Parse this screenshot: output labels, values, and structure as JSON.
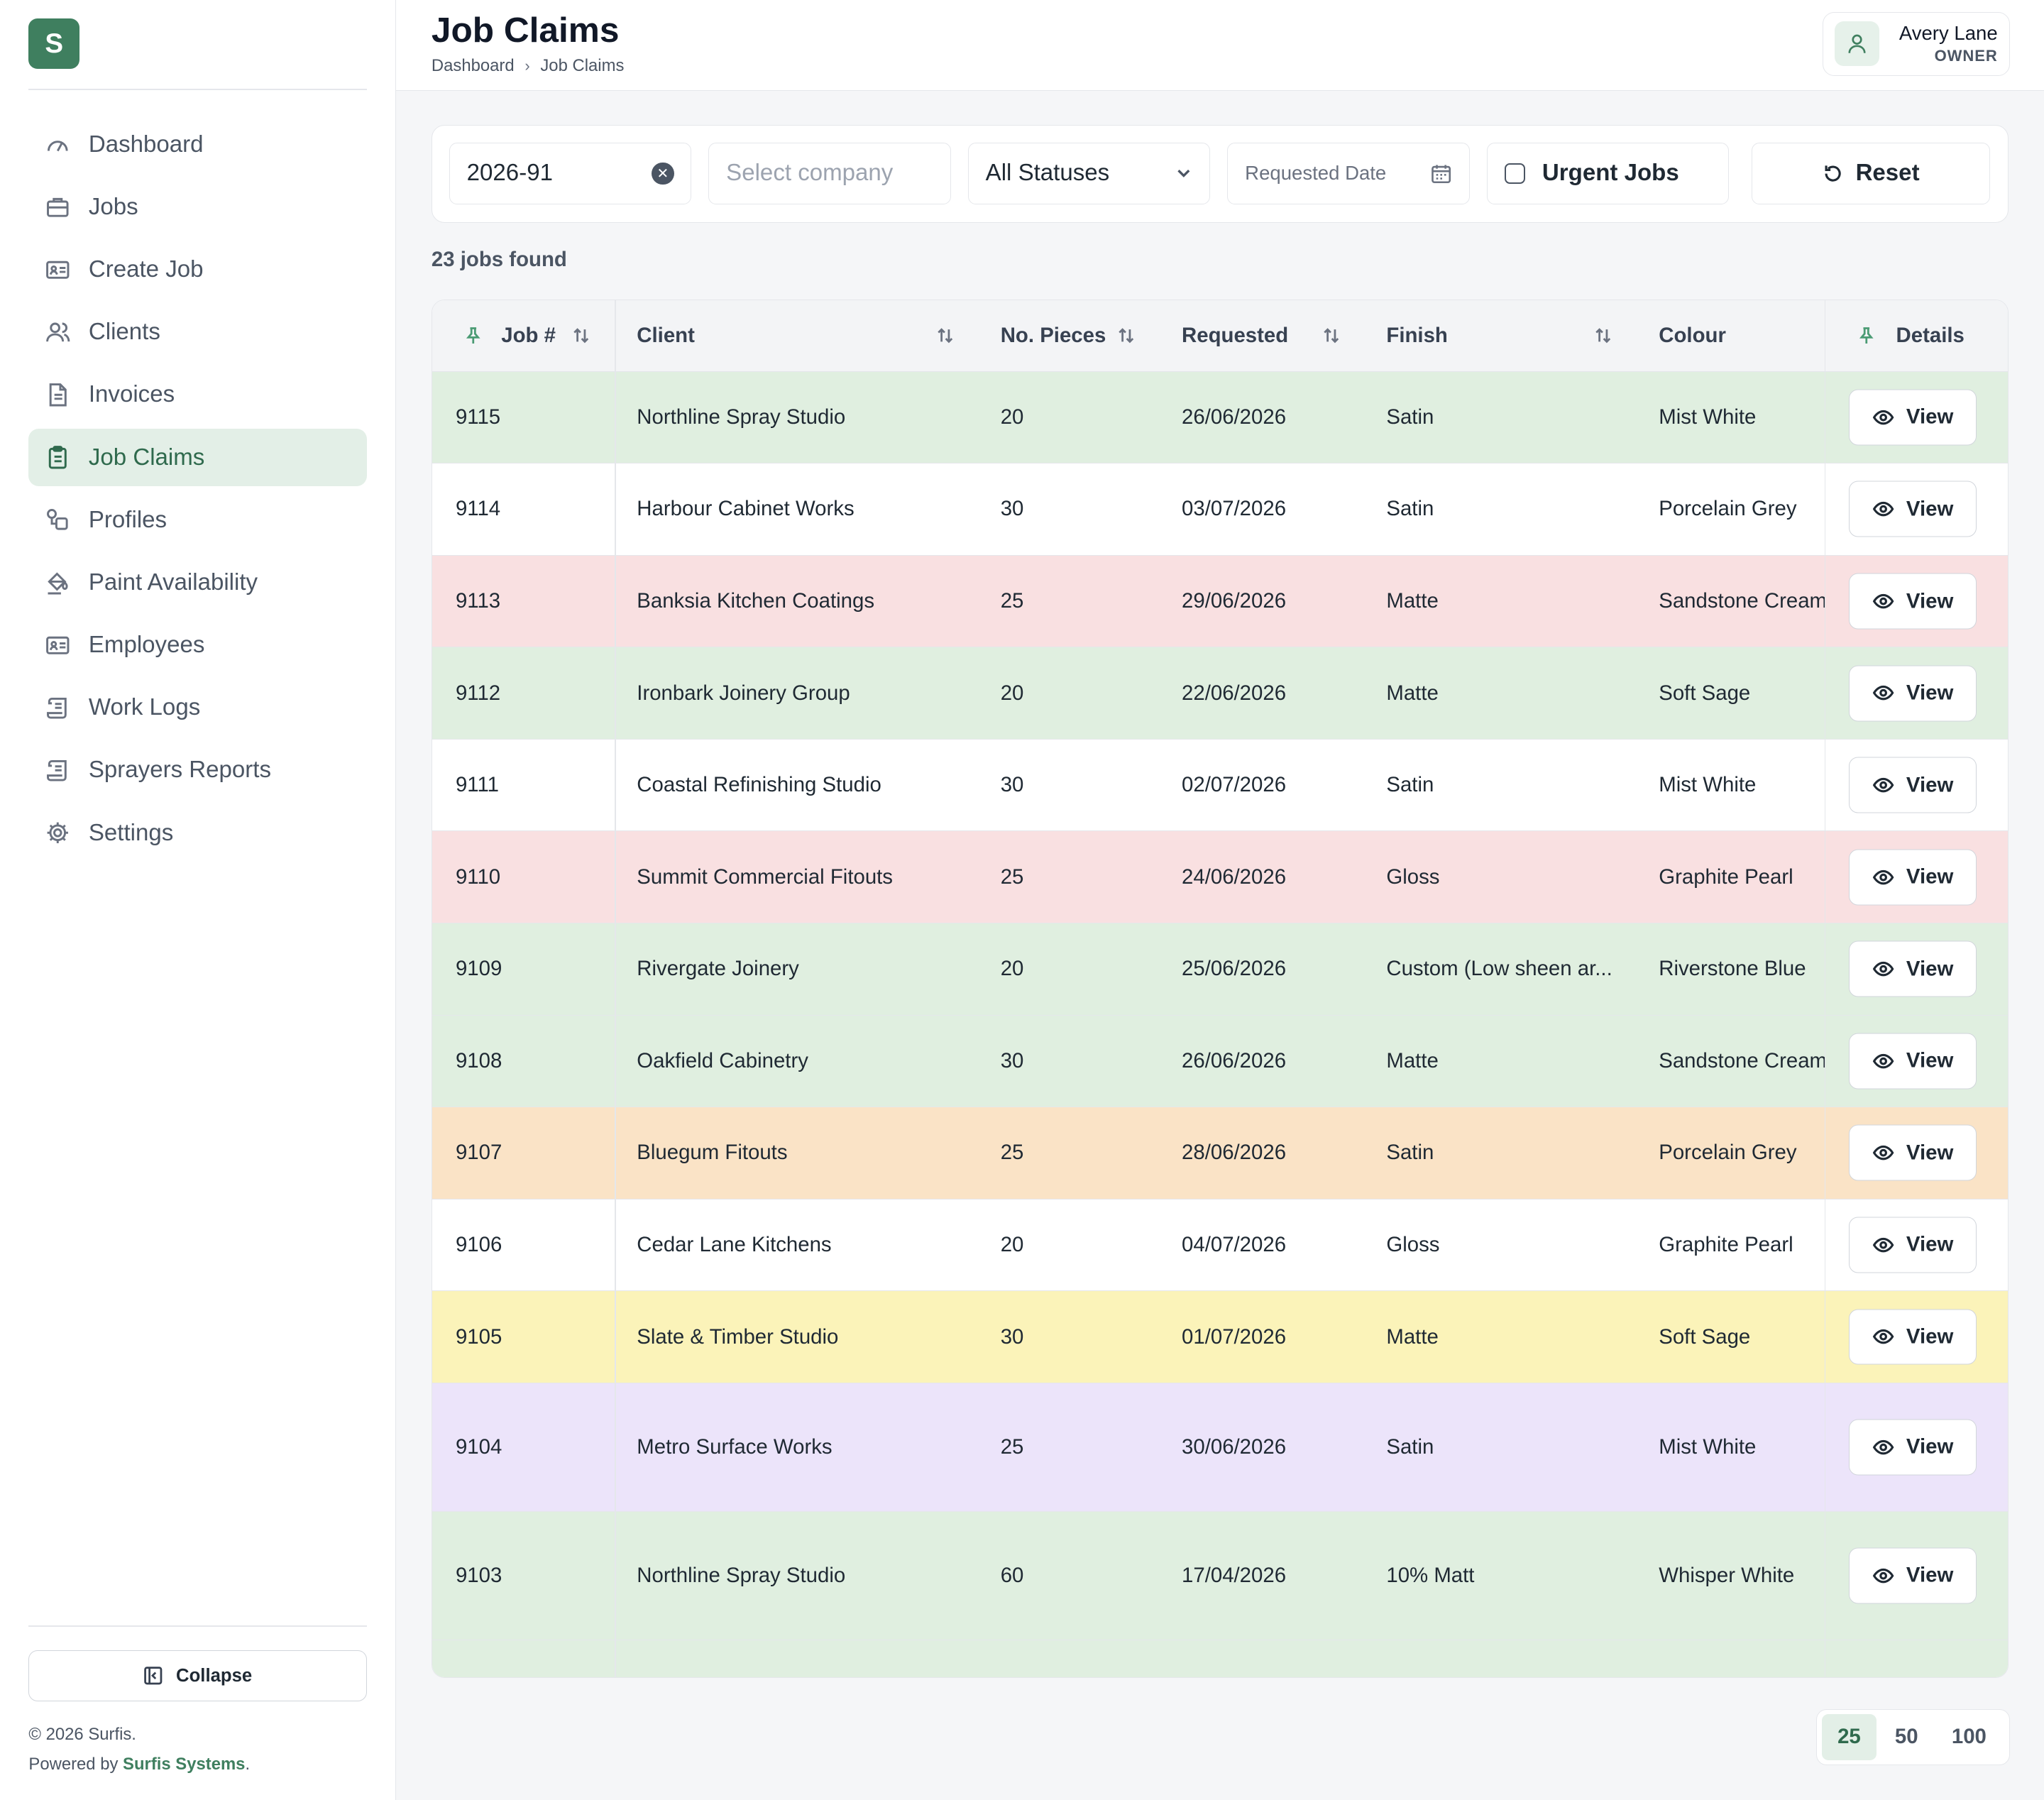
{
  "sidebar": {
    "logo": "S",
    "items": [
      {
        "label": "Dashboard",
        "icon": "gauge-icon",
        "active": false
      },
      {
        "label": "Jobs",
        "icon": "briefcase-icon",
        "active": false
      },
      {
        "label": "Create Job",
        "icon": "id-card-icon",
        "active": false
      },
      {
        "label": "Clients",
        "icon": "users-icon",
        "active": false
      },
      {
        "label": "Invoices",
        "icon": "document-icon",
        "active": false
      },
      {
        "label": "Job Claims",
        "icon": "clipboard-icon",
        "active": true
      },
      {
        "label": "Profiles",
        "icon": "profiles-icon",
        "active": false
      },
      {
        "label": "Paint Availability",
        "icon": "paint-bucket-icon",
        "active": false
      },
      {
        "label": "Employees",
        "icon": "id-card-icon",
        "active": false
      },
      {
        "label": "Work Logs",
        "icon": "scroll-icon",
        "active": false
      },
      {
        "label": "Sprayers Reports",
        "icon": "scroll-icon",
        "active": false
      },
      {
        "label": "Settings",
        "icon": "gear-icon",
        "active": false
      }
    ],
    "collapse_label": "Collapse",
    "copyright": "© 2026 Surfis.",
    "powered_prefix": "Powered by",
    "powered_brand": "Surfis Systems",
    "powered_suffix": "."
  },
  "header": {
    "title": "Job Claims",
    "breadcrumb": [
      "Dashboard",
      "Job Claims"
    ]
  },
  "user": {
    "name": "Avery Lane",
    "role": "OWNER"
  },
  "filters": {
    "job_search_value": "2026-91",
    "company_placeholder": "Select company",
    "status_value": "All Statuses",
    "date_placeholder": "Requested Date",
    "urgent_label": "Urgent Jobs",
    "reset_label": "Reset"
  },
  "results": {
    "count_text": "23 jobs found"
  },
  "table": {
    "columns": {
      "job": "Job #",
      "client": "Client",
      "pieces": "No. Pieces",
      "requested": "Requested",
      "finish": "Finish",
      "colour": "Colour",
      "details": "Details"
    },
    "view_label": "View",
    "row_colors": {
      "green": "#e0efe0",
      "white": "#ffffff",
      "red": "#f9e0e1",
      "orange": "#fae3c6",
      "yellow": "#fbf3b9",
      "purple": "#ece4fa"
    },
    "rows": [
      {
        "job": "9115",
        "client": "Northline Spray Studio",
        "pieces": "20",
        "requested": "26/06/2026",
        "finish": "Satin",
        "colour": "Mist White",
        "color": "green"
      },
      {
        "job": "9114",
        "client": "Harbour Cabinet Works",
        "pieces": "30",
        "requested": "03/07/2026",
        "finish": "Satin",
        "colour": "Porcelain Grey",
        "color": "white"
      },
      {
        "job": "9113",
        "client": "Banksia Kitchen Coatings",
        "pieces": "25",
        "requested": "29/06/2026",
        "finish": "Matte",
        "colour": "Sandstone Cream",
        "color": "red"
      },
      {
        "job": "9112",
        "client": "Ironbark Joinery Group",
        "pieces": "20",
        "requested": "22/06/2026",
        "finish": "Matte",
        "colour": "Soft Sage",
        "color": "green"
      },
      {
        "job": "9111",
        "client": "Coastal Refinishing Studio",
        "pieces": "30",
        "requested": "02/07/2026",
        "finish": "Satin",
        "colour": "Mist White",
        "color": "white"
      },
      {
        "job": "9110",
        "client": "Summit Commercial Fitouts",
        "pieces": "25",
        "requested": "24/06/2026",
        "finish": "Gloss",
        "colour": "Graphite Pearl",
        "color": "red"
      },
      {
        "job": "9109",
        "client": "Rivergate Joinery",
        "pieces": "20",
        "requested": "25/06/2026",
        "finish": "Custom (Low sheen ar...",
        "colour": "Riverstone Blue",
        "color": "green"
      },
      {
        "job": "9108",
        "client": "Oakfield Cabinetry",
        "pieces": "30",
        "requested": "26/06/2026",
        "finish": "Matte",
        "colour": "Sandstone Cream",
        "color": "green"
      },
      {
        "job": "9107",
        "client": "Bluegum Fitouts",
        "pieces": "25",
        "requested": "28/06/2026",
        "finish": "Satin",
        "colour": "Porcelain Grey",
        "color": "orange"
      },
      {
        "job": "9106",
        "client": "Cedar Lane Kitchens",
        "pieces": "20",
        "requested": "04/07/2026",
        "finish": "Gloss",
        "colour": "Graphite Pearl",
        "color": "white"
      },
      {
        "job": "9105",
        "client": "Slate & Timber Studio",
        "pieces": "30",
        "requested": "01/07/2026",
        "finish": "Matte",
        "colour": "Soft Sage",
        "color": "yellow"
      },
      {
        "job": "9104",
        "client": "Metro Surface Works",
        "pieces": "25",
        "requested": "30/06/2026",
        "finish": "Satin",
        "colour": "Mist White",
        "color": "purple",
        "tall": true
      },
      {
        "job": "9103",
        "client": "Northline Spray Studio",
        "pieces": "60",
        "requested": "17/04/2026",
        "finish": "10% Matt",
        "colour": "Whisper White",
        "color": "green",
        "tall": true
      }
    ]
  },
  "pagination": {
    "sizes": [
      "25",
      "50",
      "100"
    ],
    "active": "25"
  }
}
